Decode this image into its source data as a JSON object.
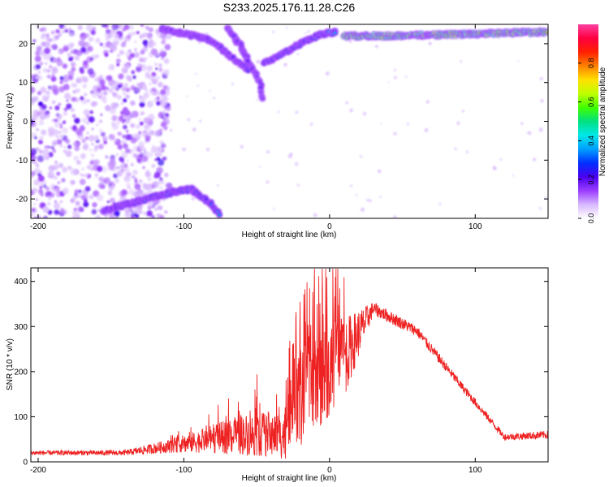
{
  "title": "S233.2025.176.11.28.C26",
  "chart_data": [
    {
      "type": "heatmap",
      "xlabel": "Height of straight line (km)",
      "ylabel": "Frequency (Hz)",
      "xlim": [
        -205,
        150
      ],
      "ylim": [
        -25,
        25
      ],
      "xticks": [
        -200,
        -100,
        0,
        100
      ],
      "yticks": [
        -20,
        -10,
        0,
        10,
        20
      ],
      "colorbar": {
        "label": "Normalized spectral amplitude",
        "range": [
          0,
          1
        ],
        "ticks": [
          0.0,
          0.2,
          0.4,
          0.6,
          0.8
        ],
        "colors": [
          "#ffffff",
          "#d8b8ff",
          "#9a3cff",
          "#4b00f0",
          "#0030ff",
          "#00a0ff",
          "#00e8e8",
          "#00e080",
          "#40ff00",
          "#c0ff00",
          "#ffe000",
          "#ff8000",
          "#ff2000",
          "#ff0040",
          "#ff40a0"
        ]
      },
      "features": [
        {
          "kind": "band",
          "points": [
            [
              -155,
              -23
            ],
            [
              -140,
              -21.5
            ],
            [
              -120,
              -19.5
            ],
            [
              -105,
              -18
            ],
            [
              -95,
              -17.5
            ],
            [
              -85,
              -20
            ],
            [
              -75,
              -24
            ]
          ],
          "peak": 0.35
        },
        {
          "kind": "band",
          "points": [
            [
              -115,
              24
            ],
            [
              -100,
              22.5
            ],
            [
              -85,
              21.5
            ],
            [
              -75,
              19
            ],
            [
              -65,
              16
            ],
            [
              -55,
              13
            ]
          ],
          "peak": 0.3
        },
        {
          "kind": "band",
          "points": [
            [
              -70,
              24
            ],
            [
              -62,
              20
            ],
            [
              -55,
              15
            ],
            [
              -48,
              10
            ],
            [
              -45,
              5
            ]
          ],
          "peak": 0.25
        },
        {
          "kind": "band",
          "points": [
            [
              -45,
              15
            ],
            [
              -35,
              17
            ],
            [
              -25,
              19
            ],
            [
              -15,
              21
            ],
            [
              -5,
              22.5
            ],
            [
              5,
              23
            ]
          ],
          "peak": 0.4
        },
        {
          "kind": "band",
          "points": [
            [
              10,
              22
            ],
            [
              40,
              22
            ],
            [
              70,
              22.3
            ],
            [
              100,
              22.5
            ],
            [
              120,
              22.8
            ],
            [
              150,
              23
            ]
          ],
          "peak": 0.95
        }
      ]
    },
    {
      "type": "line",
      "xlabel": "Height of straight line (km)",
      "ylabel": "SNR (10 * v/v)",
      "xlim": [
        -205,
        150
      ],
      "ylim": [
        0,
        430
      ],
      "xticks": [
        -200,
        -100,
        0,
        100
      ],
      "yticks": [
        0,
        100,
        200,
        300,
        400
      ],
      "color": "#ee2222",
      "envelope": [
        {
          "x": -205,
          "base": 20,
          "amp": 10
        },
        {
          "x": -140,
          "base": 20,
          "amp": 12
        },
        {
          "x": -110,
          "base": 35,
          "amp": 30
        },
        {
          "x": -90,
          "base": 45,
          "amp": 50
        },
        {
          "x": -60,
          "base": 60,
          "amp": 90
        },
        {
          "x": -30,
          "base": 60,
          "amp": 110
        },
        {
          "x": -25,
          "base": 120,
          "amp": 200
        },
        {
          "x": -10,
          "base": 180,
          "amp": 240
        },
        {
          "x": 10,
          "base": 230,
          "amp": 180
        },
        {
          "x": 30,
          "base": 340,
          "amp": 30
        },
        {
          "x": 60,
          "base": 290,
          "amp": 25
        },
        {
          "x": 90,
          "base": 170,
          "amp": 20
        },
        {
          "x": 120,
          "base": 55,
          "amp": 15
        },
        {
          "x": 150,
          "base": 60,
          "amp": 18
        }
      ]
    }
  ]
}
